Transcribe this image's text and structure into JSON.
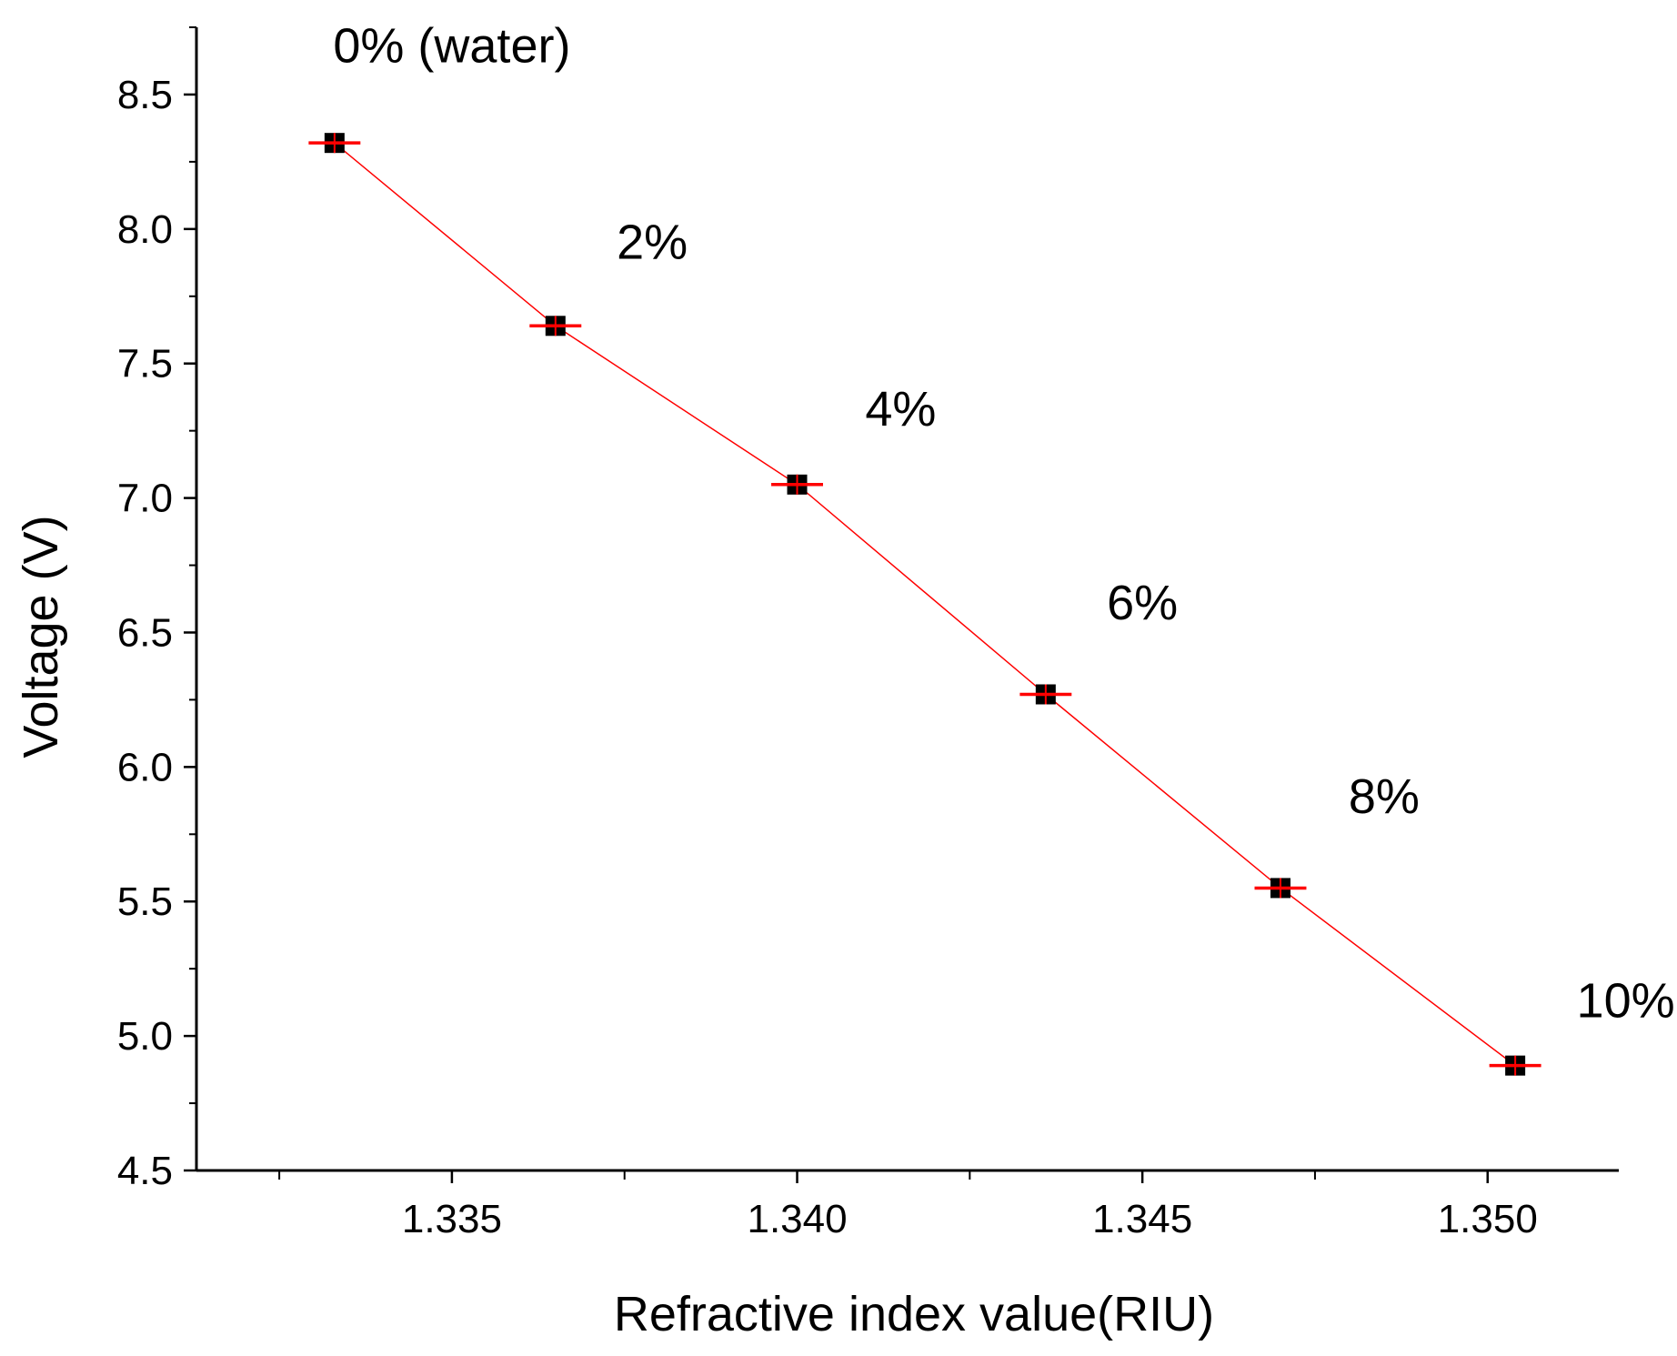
{
  "chart_data": {
    "type": "scatter",
    "title": "",
    "xlabel": "Refractive index value(RIU)",
    "ylabel": "Voltage (V)",
    "xlim": [
      1.3313,
      1.3519
    ],
    "ylim": [
      4.5,
      8.75
    ],
    "x_ticks": [
      1.335,
      1.34,
      1.345,
      1.35
    ],
    "x_tick_labels": [
      "1.335",
      "1.340",
      "1.345",
      "1.350"
    ],
    "x_minor_ticks": [
      1.3325,
      1.3375,
      1.3425,
      1.3475
    ],
    "y_ticks": [
      4.5,
      5.0,
      5.5,
      6.0,
      6.5,
      7.0,
      7.5,
      8.0,
      8.5
    ],
    "y_tick_labels": [
      "4.5",
      "5.0",
      "5.5",
      "6.0",
      "6.5",
      "7.0",
      "7.5",
      "8.0",
      "8.5"
    ],
    "grid": false,
    "series": [
      {
        "name": "Voltage",
        "marker": "square",
        "marker_color": "#000000",
        "line_color": "#ff0000",
        "error_color": "#ff0000",
        "x": [
          1.3333,
          1.3365,
          1.34,
          1.3436,
          1.347,
          1.3504
        ],
        "y": [
          8.32,
          7.64,
          7.05,
          6.27,
          5.55,
          4.89
        ],
        "x_error": [
          0.0005,
          0.0005,
          0.0005,
          0.0005,
          0.0005,
          0.0005
        ]
      }
    ],
    "annotations": [
      {
        "text": "0% (water)",
        "x": 1.335,
        "y": 8.68
      },
      {
        "text": "2%",
        "x": 1.3379,
        "y": 7.95
      },
      {
        "text": "4%",
        "x": 1.3415,
        "y": 7.33
      },
      {
        "text": "6%",
        "x": 1.345,
        "y": 6.61
      },
      {
        "text": "8%",
        "x": 1.3485,
        "y": 5.89
      },
      {
        "text": "10%",
        "x": 1.352,
        "y": 5.13
      }
    ]
  }
}
